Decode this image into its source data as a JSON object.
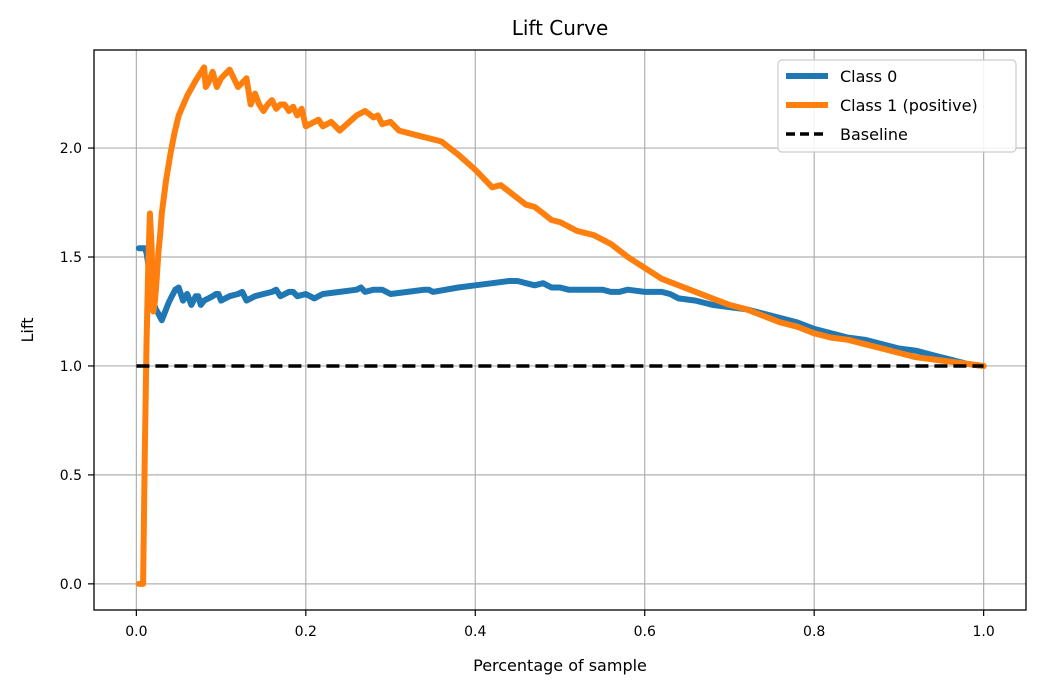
{
  "chart_data": {
    "type": "line",
    "title": "Lift Curve",
    "xlabel": "Percentage of sample",
    "ylabel": "Lift",
    "xlim": [
      -0.05,
      1.05
    ],
    "ylim": [
      -0.12,
      2.45
    ],
    "xticks": [
      0.0,
      0.2,
      0.4,
      0.6,
      0.8,
      1.0
    ],
    "xtick_labels": [
      "0.0",
      "0.2",
      "0.4",
      "0.6",
      "0.8",
      "1.0"
    ],
    "yticks": [
      0.0,
      0.5,
      1.0,
      1.5,
      2.0
    ],
    "ytick_labels": [
      "0.0",
      "0.5",
      "1.0",
      "1.5",
      "2.0"
    ],
    "grid": true,
    "legend_position": "top-right",
    "series": [
      {
        "name": "Class 0",
        "color": "#1f77b4",
        "style": "solid",
        "x": [
          0.003,
          0.01,
          0.012,
          0.014,
          0.016,
          0.018,
          0.02,
          0.023,
          0.026,
          0.03,
          0.034,
          0.038,
          0.042,
          0.046,
          0.05,
          0.055,
          0.058,
          0.06,
          0.065,
          0.07,
          0.073,
          0.076,
          0.08,
          0.085,
          0.09,
          0.094,
          0.097,
          0.1,
          0.11,
          0.12,
          0.125,
          0.13,
          0.14,
          0.15,
          0.16,
          0.165,
          0.17,
          0.18,
          0.185,
          0.19,
          0.2,
          0.21,
          0.22,
          0.24,
          0.26,
          0.265,
          0.27,
          0.28,
          0.29,
          0.3,
          0.32,
          0.34,
          0.345,
          0.35,
          0.38,
          0.4,
          0.42,
          0.44,
          0.45,
          0.46,
          0.47,
          0.48,
          0.49,
          0.5,
          0.51,
          0.52,
          0.53,
          0.54,
          0.55,
          0.56,
          0.57,
          0.58,
          0.6,
          0.62,
          0.63,
          0.64,
          0.66,
          0.68,
          0.7,
          0.72,
          0.74,
          0.76,
          0.78,
          0.8,
          0.82,
          0.84,
          0.86,
          0.88,
          0.9,
          0.92,
          0.94,
          0.96,
          0.98,
          1.0
        ],
        "y": [
          1.54,
          1.54,
          1.52,
          1.47,
          1.4,
          1.33,
          1.29,
          1.26,
          1.24,
          1.21,
          1.25,
          1.29,
          1.32,
          1.35,
          1.36,
          1.3,
          1.32,
          1.33,
          1.28,
          1.32,
          1.32,
          1.28,
          1.3,
          1.31,
          1.32,
          1.33,
          1.33,
          1.3,
          1.32,
          1.33,
          1.34,
          1.3,
          1.32,
          1.33,
          1.34,
          1.35,
          1.32,
          1.34,
          1.34,
          1.32,
          1.33,
          1.31,
          1.33,
          1.34,
          1.35,
          1.36,
          1.34,
          1.35,
          1.35,
          1.33,
          1.34,
          1.35,
          1.35,
          1.34,
          1.36,
          1.37,
          1.38,
          1.39,
          1.39,
          1.38,
          1.37,
          1.38,
          1.36,
          1.36,
          1.35,
          1.35,
          1.35,
          1.35,
          1.35,
          1.34,
          1.34,
          1.35,
          1.34,
          1.34,
          1.33,
          1.31,
          1.3,
          1.28,
          1.27,
          1.26,
          1.24,
          1.22,
          1.2,
          1.17,
          1.15,
          1.13,
          1.12,
          1.1,
          1.08,
          1.07,
          1.05,
          1.03,
          1.01,
          1.0
        ]
      },
      {
        "name": "Class 1 (positive)",
        "color": "#ff7f0e",
        "style": "solid",
        "x": [
          0.003,
          0.008,
          0.01,
          0.012,
          0.014,
          0.016,
          0.018,
          0.02,
          0.022,
          0.024,
          0.026,
          0.028,
          0.03,
          0.035,
          0.04,
          0.045,
          0.05,
          0.06,
          0.07,
          0.08,
          0.082,
          0.085,
          0.09,
          0.095,
          0.1,
          0.105,
          0.11,
          0.12,
          0.125,
          0.13,
          0.135,
          0.14,
          0.145,
          0.15,
          0.155,
          0.16,
          0.165,
          0.17,
          0.175,
          0.18,
          0.185,
          0.19,
          0.195,
          0.2,
          0.21,
          0.215,
          0.22,
          0.23,
          0.24,
          0.26,
          0.27,
          0.28,
          0.285,
          0.29,
          0.3,
          0.31,
          0.32,
          0.34,
          0.35,
          0.36,
          0.37,
          0.38,
          0.4,
          0.42,
          0.43,
          0.44,
          0.45,
          0.46,
          0.47,
          0.48,
          0.49,
          0.5,
          0.51,
          0.52,
          0.53,
          0.54,
          0.55,
          0.56,
          0.58,
          0.6,
          0.62,
          0.64,
          0.66,
          0.68,
          0.7,
          0.72,
          0.74,
          0.76,
          0.78,
          0.8,
          0.82,
          0.84,
          0.86,
          0.88,
          0.9,
          0.92,
          0.94,
          0.96,
          0.98,
          1.0
        ],
        "y": [
          0.0,
          0.0,
          0.6,
          1.1,
          1.45,
          1.7,
          1.55,
          1.25,
          1.3,
          1.4,
          1.52,
          1.6,
          1.7,
          1.85,
          1.97,
          2.07,
          2.15,
          2.24,
          2.31,
          2.37,
          2.28,
          2.3,
          2.35,
          2.28,
          2.32,
          2.34,
          2.36,
          2.28,
          2.3,
          2.32,
          2.2,
          2.25,
          2.2,
          2.17,
          2.2,
          2.22,
          2.18,
          2.2,
          2.2,
          2.17,
          2.19,
          2.15,
          2.18,
          2.1,
          2.12,
          2.13,
          2.1,
          2.12,
          2.08,
          2.15,
          2.17,
          2.14,
          2.15,
          2.11,
          2.12,
          2.08,
          2.07,
          2.05,
          2.04,
          2.03,
          2.0,
          1.97,
          1.9,
          1.82,
          1.83,
          1.8,
          1.77,
          1.74,
          1.73,
          1.7,
          1.67,
          1.66,
          1.64,
          1.62,
          1.61,
          1.6,
          1.58,
          1.56,
          1.5,
          1.45,
          1.4,
          1.37,
          1.34,
          1.31,
          1.28,
          1.26,
          1.23,
          1.2,
          1.18,
          1.15,
          1.13,
          1.12,
          1.1,
          1.08,
          1.06,
          1.04,
          1.03,
          1.02,
          1.01,
          1.0
        ]
      },
      {
        "name": "Baseline",
        "color": "#000000",
        "style": "dashed",
        "x": [
          0.0,
          1.0
        ],
        "y": [
          1.0,
          1.0
        ]
      }
    ]
  }
}
